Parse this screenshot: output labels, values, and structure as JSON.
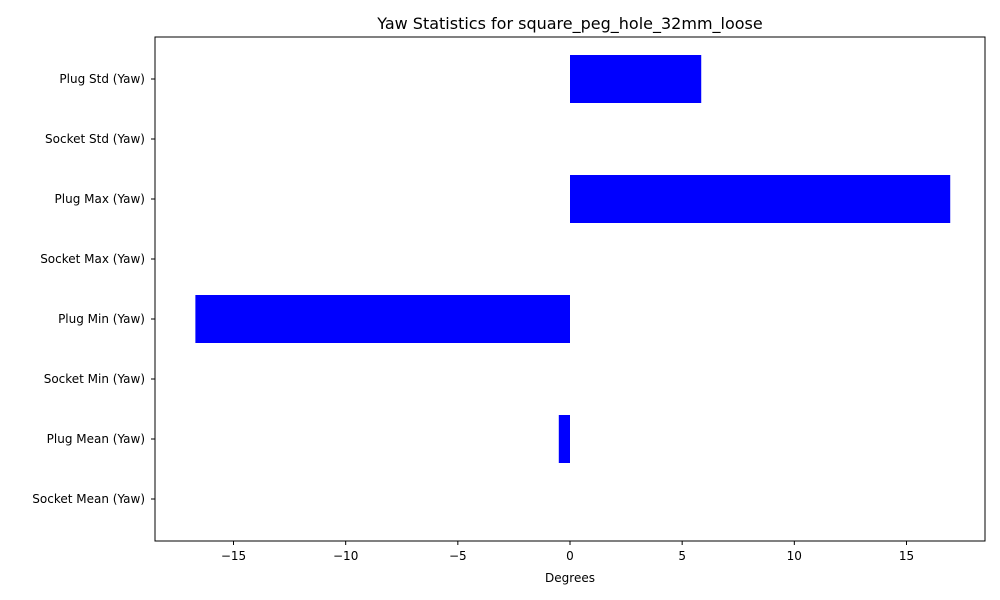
{
  "chart_data": {
    "type": "bar",
    "orientation": "horizontal",
    "title": "Yaw Statistics for square_peg_hole_32mm_loose",
    "xlabel": "Degrees",
    "ylabel": "",
    "categories": [
      "Socket Mean (Yaw)",
      "Plug Mean (Yaw)",
      "Socket Min (Yaw)",
      "Plug Min (Yaw)",
      "Socket Max (Yaw)",
      "Plug Max (Yaw)",
      "Socket Std (Yaw)",
      "Plug Std (Yaw)"
    ],
    "values": [
      0,
      -0.5,
      0,
      -16.7,
      0,
      16.95,
      0,
      5.85
    ],
    "bar_color": "#0000ff",
    "xlim": [
      -18.5,
      18.5
    ],
    "xticks": [
      -15,
      -10,
      -5,
      0,
      5,
      10,
      15
    ],
    "xtick_labels": [
      "−15",
      "−10",
      "−5",
      "0",
      "5",
      "10",
      "15"
    ],
    "grid": false,
    "legend": "none"
  }
}
